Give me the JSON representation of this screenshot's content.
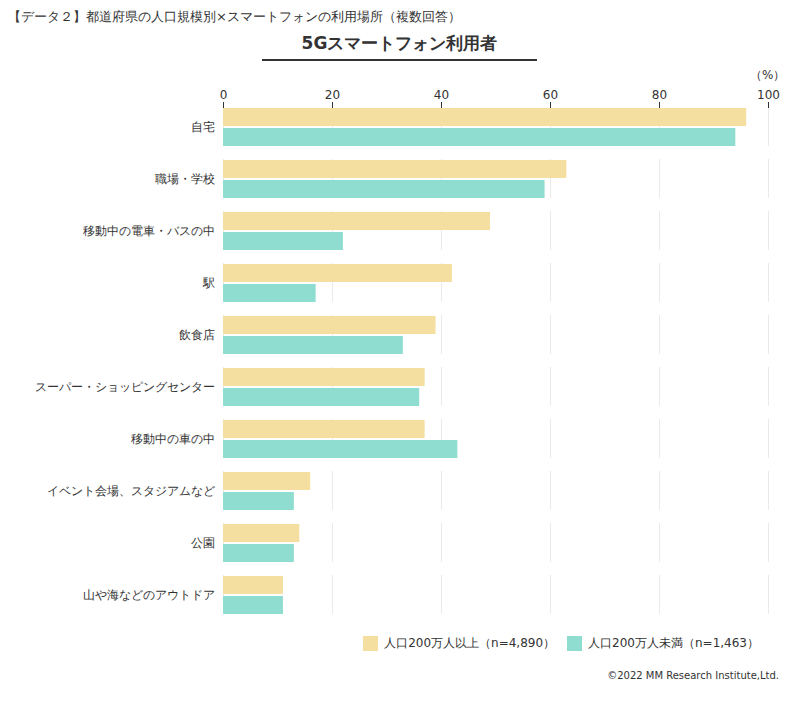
{
  "chart_data": {
    "type": "bar",
    "orientation": "horizontal",
    "subtitle": "【データ２】都道府県の人口規模別×スマートフォンの利用場所（複数回答）",
    "title": "5Gスマートフォン利用者",
    "xlabel": "（%）",
    "categories": [
      "自宅",
      "職場・学校",
      "移動中の電車・バスの中",
      "駅",
      "飲食店",
      "スーパー・ショッピングセンター",
      "移動中の車の中",
      "イベント会場、スタジアムなど",
      "公園",
      "山や海などのアウトドア"
    ],
    "series": [
      {
        "name": "人口200万人以上（n=4,890）",
        "color": "#F5DFA0",
        "values": [
          96,
          63,
          49,
          42,
          39,
          37,
          37,
          16,
          14,
          11
        ]
      },
      {
        "name": "人口200万人未満（n=1,463）",
        "color": "#8FDDD0",
        "values": [
          94,
          59,
          22,
          17,
          33,
          36,
          43,
          13,
          13,
          11
        ]
      }
    ],
    "xlim": [
      0,
      100
    ],
    "xticks": [
      0,
      20,
      40,
      60,
      80,
      100
    ],
    "grid": true,
    "legend": "lower right",
    "annotations": [
      "©2022 MM Research Institute,Ltd."
    ]
  }
}
